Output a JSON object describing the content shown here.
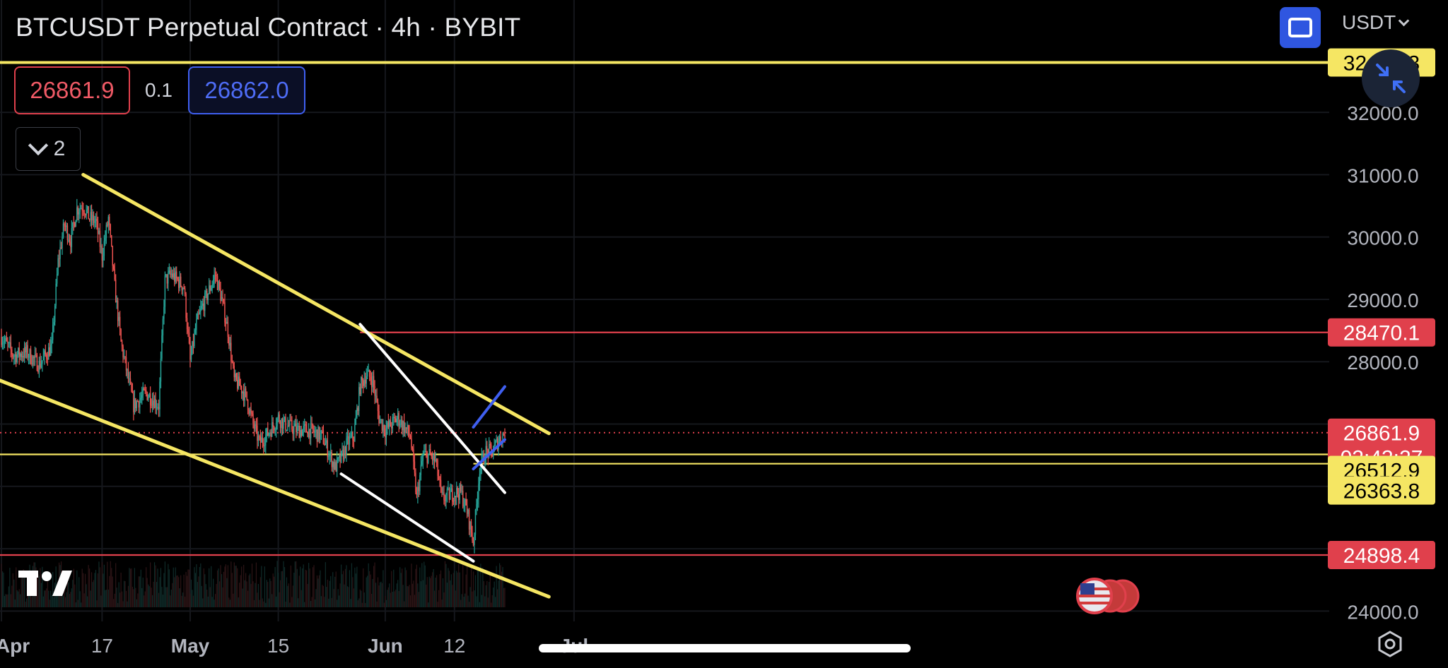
{
  "header": {
    "title": "BTCUSDT Perpetual Contract · 4h · BYBIT",
    "bid": "26861.9",
    "spread": "0.1",
    "ask": "26862.0",
    "indicators_count": "2",
    "currency": "USDT"
  },
  "colors": {
    "up": "#26a69a",
    "down": "#ef5350",
    "trendline_yellow": "#f5e663",
    "level_red": "#e0404c",
    "channel_blue": "#3f5ff0",
    "background": "#000000"
  },
  "icons": [
    "fullscreen-icon",
    "chevron-down-icon",
    "exit-fullscreen-icon",
    "tradingview-logo",
    "us-flag-icon",
    "settings-icon"
  ],
  "chart_data": {
    "type": "candlestick",
    "symbol": "BTCUSDT",
    "timeframe": "4h",
    "ylim": [
      23800,
      32900
    ],
    "x_ticks": [
      "Apr",
      "17",
      "May",
      "15",
      "Jun",
      "12",
      "Jul"
    ],
    "y_ticks": [
      "24000.0",
      "28000.0",
      "29000.0",
      "30000.0",
      "31000.0",
      "32000.0"
    ],
    "price_labels": [
      {
        "text": "32___.3",
        "value": 32800,
        "style": "yellow"
      },
      {
        "text": "28470.1",
        "value": 28470.1,
        "style": "red"
      },
      {
        "text": "26861.9",
        "value": 26861.9,
        "style": "red",
        "countdown": "02:43:27"
      },
      {
        "text": "26512.9",
        "value": 26512.9,
        "style": "yellow"
      },
      {
        "text": "26363.8",
        "value": 26363.8,
        "style": "yellow"
      },
      {
        "text": "24898.4",
        "value": 24898.4,
        "style": "red"
      }
    ],
    "horizontal_levels": [
      {
        "value": 32800,
        "color": "yellow"
      },
      {
        "value": 28470.1,
        "color": "red"
      },
      {
        "value": 26512.9,
        "color": "yellow"
      },
      {
        "value": 26363.8,
        "color": "yellow"
      },
      {
        "value": 24898.4,
        "color": "red"
      },
      {
        "value": 26861.9,
        "color": "red",
        "dotted": true
      }
    ],
    "trendlines": [
      {
        "color": "yellow",
        "from": [
          "04-14",
          31000
        ],
        "to": [
          "06-27",
          26850
        ]
      },
      {
        "color": "yellow",
        "from": [
          "03-31",
          27730
        ],
        "to": [
          "06-27",
          24230
        ]
      },
      {
        "color": "white",
        "from": [
          "05-28",
          28600
        ],
        "to": [
          "06-20",
          25900
        ]
      },
      {
        "color": "white",
        "from": [
          "05-25",
          26200
        ],
        "to": [
          "06-15",
          24800
        ]
      },
      {
        "color": "blue",
        "from": [
          "06-15",
          26950
        ],
        "to": [
          "06-20",
          27600
        ]
      },
      {
        "color": "blue",
        "from": [
          "06-15",
          26280
        ],
        "to": [
          "06-20",
          26750
        ]
      }
    ],
    "close_path": [
      [
        "04-01",
        28400
      ],
      [
        "04-03",
        28100
      ],
      [
        "04-05",
        28150
      ],
      [
        "04-07",
        27950
      ],
      [
        "04-09",
        28250
      ],
      [
        "04-10",
        29600
      ],
      [
        "04-11",
        30200
      ],
      [
        "04-12",
        29950
      ],
      [
        "04-13",
        30450
      ],
      [
        "04-14",
        30500
      ],
      [
        "04-15",
        30300
      ],
      [
        "04-16",
        30250
      ],
      [
        "04-17",
        29700
      ],
      [
        "04-18",
        30300
      ],
      [
        "04-19",
        29200
      ],
      [
        "04-20",
        28300
      ],
      [
        "04-21",
        27800
      ],
      [
        "04-22",
        27300
      ],
      [
        "04-24",
        27500
      ],
      [
        "04-26",
        27300
      ],
      [
        "04-27",
        29300
      ],
      [
        "04-28",
        29400
      ],
      [
        "04-29",
        29300
      ],
      [
        "04-30",
        29200
      ],
      [
        "05-01",
        28000
      ],
      [
        "05-02",
        28600
      ],
      [
        "05-03",
        28900
      ],
      [
        "05-05",
        29400
      ],
      [
        "05-06",
        29000
      ],
      [
        "05-07",
        28500
      ],
      [
        "05-08",
        27700
      ],
      [
        "05-09",
        27600
      ],
      [
        "05-10",
        27400
      ],
      [
        "05-11",
        27000
      ],
      [
        "05-12",
        26700
      ],
      [
        "05-13",
        26800
      ],
      [
        "05-15",
        27100
      ],
      [
        "05-16",
        27000
      ],
      [
        "05-18",
        26900
      ],
      [
        "05-20",
        26900
      ],
      [
        "05-22",
        26800
      ],
      [
        "05-24",
        26300
      ],
      [
        "05-25",
        26450
      ],
      [
        "05-26",
        26700
      ],
      [
        "05-27",
        26800
      ],
      [
        "05-28",
        27600
      ],
      [
        "05-29",
        27800
      ],
      [
        "05-30",
        27700
      ],
      [
        "05-31",
        27100
      ],
      [
        "06-01",
        26900
      ],
      [
        "06-03",
        27100
      ],
      [
        "06-05",
        26800
      ],
      [
        "06-06",
        25800
      ],
      [
        "06-07",
        26500
      ],
      [
        "06-08",
        26500
      ],
      [
        "06-09",
        26400
      ],
      [
        "06-10",
        25800
      ],
      [
        "06-12",
        25900
      ],
      [
        "06-13",
        25900
      ],
      [
        "06-14",
        25600
      ],
      [
        "06-15",
        25100
      ],
      [
        "06-16",
        26300
      ],
      [
        "06-17",
        26550
      ],
      [
        "06-18",
        26550
      ],
      [
        "06-19",
        26750
      ],
      [
        "06-20",
        26862
      ]
    ]
  }
}
